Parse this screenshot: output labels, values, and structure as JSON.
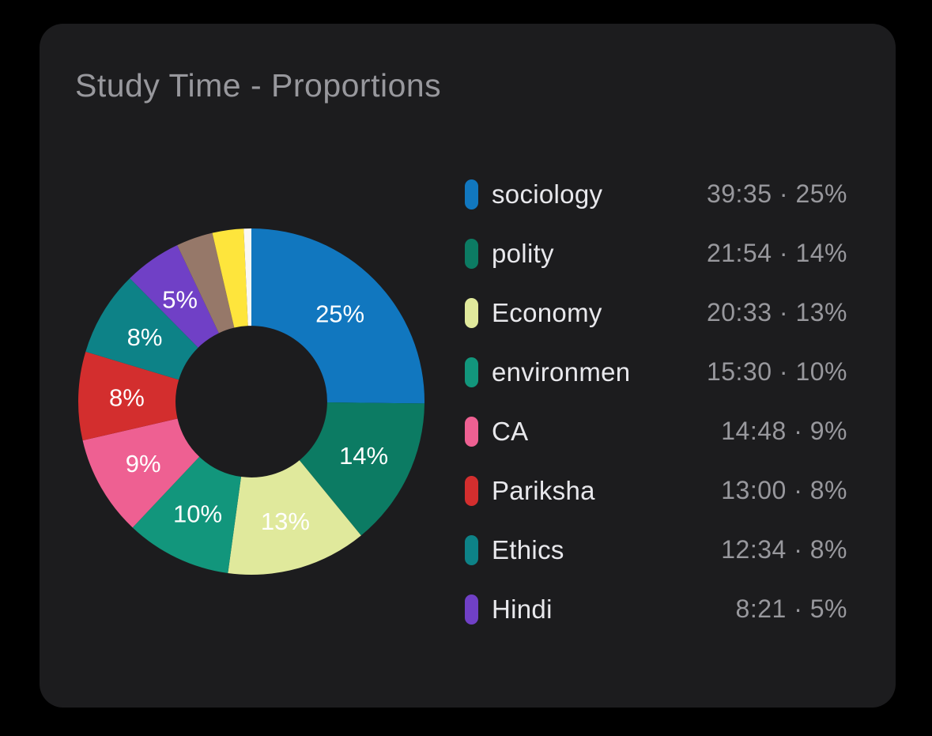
{
  "page": {
    "background": "#000000"
  },
  "card": {
    "background": "#1c1c1e",
    "title": "Study Time - Proportions",
    "title_color": "#98989d"
  },
  "chart_data": {
    "type": "pie",
    "title": "Study Time - Proportions",
    "donut": true,
    "hole_ratio": 0.438,
    "start_angle_deg": 0,
    "direction": "clockwise",
    "legend_position": "right",
    "slice_label_color": "#ffffff",
    "slice_label_radius_frac": 0.72,
    "series": [
      {
        "label": "sociology",
        "time": "39:35",
        "percent": 25.0,
        "slice_label": "25%",
        "legend_value": "39:35 · 25%",
        "color": "#1177bf",
        "in_legend": true
      },
      {
        "label": "polity",
        "time": "21:54",
        "percent": 13.8,
        "slice_label": "14%",
        "legend_value": "21:54 · 14%",
        "color": "#0c7b63",
        "in_legend": true
      },
      {
        "label": "Economy",
        "time": "20:33",
        "percent": 13.0,
        "slice_label": "13%",
        "legend_value": "20:33 · 13%",
        "color": "#e0e99c",
        "in_legend": true
      },
      {
        "label": "environmen",
        "time": "15:30",
        "percent": 9.8,
        "slice_label": "10%",
        "legend_value": "15:30 · 10%",
        "color": "#12967c",
        "in_legend": true
      },
      {
        "label": "CA",
        "time": "14:48",
        "percent": 9.3,
        "slice_label": "9%",
        "legend_value": "14:48 · 9%",
        "color": "#ee6092",
        "in_legend": true
      },
      {
        "label": "Pariksha",
        "time": "13:00",
        "percent": 8.2,
        "slice_label": "8%",
        "legend_value": "13:00 · 8%",
        "color": "#d32e2e",
        "in_legend": true
      },
      {
        "label": "Ethics",
        "time": "12:34",
        "percent": 7.9,
        "slice_label": "8%",
        "legend_value": "12:34 · 8%",
        "color": "#0d8287",
        "in_legend": true
      },
      {
        "label": "Hindi",
        "time": "8:21",
        "percent": 5.3,
        "slice_label": "5%",
        "legend_value": "8:21 · 5%",
        "color": "#7040c6",
        "in_legend": true
      },
      {
        "label": "",
        "time": "",
        "percent": 3.4,
        "slice_label": "",
        "legend_value": "",
        "color": "#967869",
        "in_legend": false
      },
      {
        "label": "",
        "time": "",
        "percent": 2.9,
        "slice_label": "",
        "legend_value": "",
        "color": "#fee53c",
        "in_legend": false
      },
      {
        "label": "",
        "time": "",
        "percent": 0.7,
        "slice_label": "",
        "legend_value": "",
        "color": "#faf8f4",
        "in_legend": false
      }
    ]
  },
  "legend": {
    "label_color": "#e8e8ec",
    "value_color": "#98989d"
  }
}
